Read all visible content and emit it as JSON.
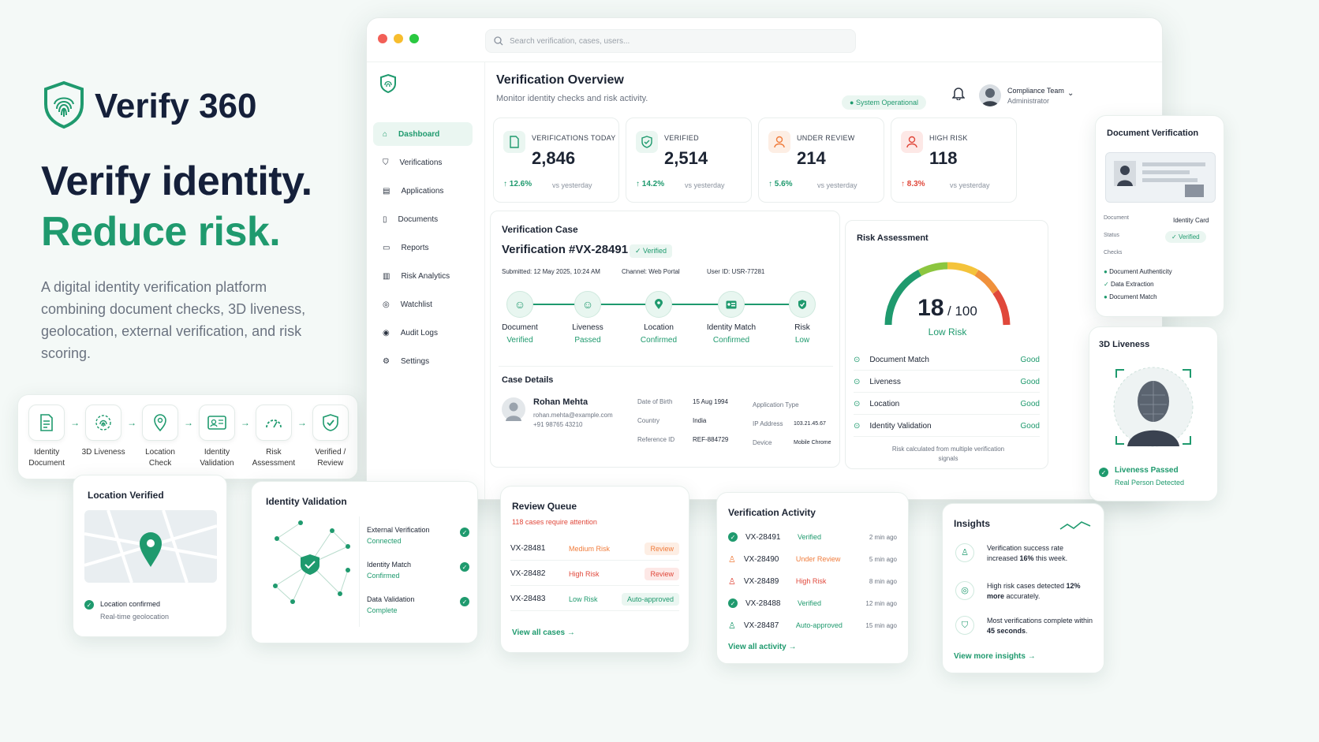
{
  "brand": {
    "name": "Verify 360"
  },
  "hero": {
    "line1": "Verify identity.",
    "line2": "Reduce risk."
  },
  "description": "A digital identity verification platform combining document checks, 3D liveness, geolocation, external verification, and risk scoring.",
  "flow": [
    {
      "label": "Identity Document",
      "icon": "document-icon"
    },
    {
      "label": "3D Liveness",
      "icon": "fingerprint-icon"
    },
    {
      "label": "Location Check",
      "icon": "location-pin-icon"
    },
    {
      "label": "Identity Validation",
      "icon": "id-card-icon"
    },
    {
      "label": "Risk Assessment",
      "icon": "gauge-icon"
    },
    {
      "label": "Verified / Review",
      "icon": "shield-check-icon"
    }
  ],
  "window": {
    "search_placeholder": "Search verification, cases, users...",
    "nav": [
      {
        "label": "Dashboard",
        "icon": "home-icon"
      },
      {
        "label": "Verifications",
        "icon": "shield-icon"
      },
      {
        "label": "Applications",
        "icon": "applications-icon"
      },
      {
        "label": "Documents",
        "icon": "document-icon"
      },
      {
        "label": "Reports",
        "icon": "reports-icon"
      },
      {
        "label": "Risk Analytics",
        "icon": "bar-chart-icon"
      },
      {
        "label": "Watchlist",
        "icon": "watchlist-icon"
      },
      {
        "label": "Audit Logs",
        "icon": "audit-icon"
      },
      {
        "label": "Settings",
        "icon": "gear-icon"
      }
    ],
    "title": "Verification Overview",
    "subtitle": "Monitor identity checks and risk activity.",
    "status": "System Operational",
    "user": {
      "team": "Compliance Team",
      "role": "Administrator"
    },
    "stats": [
      {
        "label": "VERIFICATIONS TODAY",
        "value": "2,846",
        "change": "12.6%",
        "vs": "vs yesterday",
        "color": "#1f9a6e"
      },
      {
        "label": "VERIFIED",
        "value": "2,514",
        "change": "14.2%",
        "vs": "vs yesterday",
        "color": "#1f9a6e"
      },
      {
        "label": "UNDER REVIEW",
        "value": "214",
        "change": "5.6%",
        "vs": "vs yesterday",
        "color": "#f07c3c"
      },
      {
        "label": "HIGH RISK",
        "value": "118",
        "change": "8.3%",
        "vs": "vs yesterday",
        "color": "#e0483b"
      }
    ],
    "case": {
      "header": "Verification Case",
      "id": "Verification #VX-28491",
      "badge": "Verified",
      "submitted": "Submitted: 12 May 2025, 10:24 AM",
      "channel": "Channel: Web Portal",
      "userid": "User ID: USR-77281",
      "steps": [
        {
          "label": "Document",
          "status": "Verified"
        },
        {
          "label": "Liveness",
          "status": "Passed"
        },
        {
          "label": "Location",
          "status": "Confirmed"
        },
        {
          "label": "Identity Match",
          "status": "Confirmed"
        },
        {
          "label": "Risk",
          "status": "Low"
        }
      ],
      "details_title": "Case Details",
      "person": {
        "name": "Rohan Mehta",
        "email": "rohan.mehta@example.com",
        "phone": "+91 98765 43210"
      },
      "fields": [
        {
          "k": "Date of Birth",
          "v": "15 Aug 1994"
        },
        {
          "k": "Country",
          "v": "India"
        },
        {
          "k": "Reference ID",
          "v": "REF-884729"
        }
      ],
      "fields2": [
        {
          "k": "Application Type",
          "v": ""
        },
        {
          "k": "IP Address",
          "v": "103.21.45.67"
        },
        {
          "k": "Device",
          "v": "Mobile Chrome"
        }
      ]
    },
    "risk": {
      "title": "Risk Assessment",
      "score": "18",
      "max": "/ 100",
      "level": "Low Risk",
      "rows": [
        {
          "label": "Document Match",
          "value": "Good"
        },
        {
          "label": "Liveness",
          "value": "Good"
        },
        {
          "label": "Location",
          "value": "Good"
        },
        {
          "label": "Identity Validation",
          "value": "Good"
        }
      ],
      "note": "Risk calculated from multiple verification signals"
    }
  },
  "doc_card": {
    "title": "Document Verification",
    "doc_k": "Document",
    "doc_v": "Identity Card",
    "status_k": "Status",
    "status_v": "Verified",
    "checks_k": "Checks",
    "checks": [
      "Document Authenticity",
      "Data Extraction",
      "Document Match"
    ]
  },
  "liveness_card": {
    "title": "3D Liveness",
    "passed": "Liveness Passed",
    "sub": "Real Person Detected"
  },
  "location_card": {
    "title": "Location Verified",
    "line1": "Location confirmed",
    "line2": "Real-time geolocation"
  },
  "idval_card": {
    "title": "Identity Validation",
    "items": [
      {
        "label": "External Verification",
        "status": "Connected"
      },
      {
        "label": "Identity Match",
        "status": "Confirmed"
      },
      {
        "label": "Data Validation",
        "status": "Complete"
      }
    ]
  },
  "review_card": {
    "title": "Review Queue",
    "sub": "118 cases require attention",
    "rows": [
      {
        "id": "VX-28481",
        "risk": "Medium Risk",
        "action": "Review",
        "color": "#f07c3c"
      },
      {
        "id": "VX-28482",
        "risk": "High Risk",
        "action": "Review",
        "color": "#e0483b"
      },
      {
        "id": "VX-28483",
        "risk": "Low Risk",
        "action": "Auto-approved",
        "color": "#1f9a6e"
      }
    ],
    "link": "View all cases"
  },
  "activity_card": {
    "title": "Verification Activity",
    "rows": [
      {
        "id": "VX-28491",
        "status": "Verified",
        "time": "2 min ago",
        "color": "#1f9a6e"
      },
      {
        "id": "VX-28490",
        "status": "Under Review",
        "time": "5 min ago",
        "color": "#f07c3c"
      },
      {
        "id": "VX-28489",
        "status": "High Risk",
        "time": "8 min ago",
        "color": "#e0483b"
      },
      {
        "id": "VX-28488",
        "status": "Verified",
        "time": "12 min ago",
        "color": "#1f9a6e"
      },
      {
        "id": "VX-28487",
        "status": "Auto-approved",
        "time": "15 min ago",
        "color": "#1f9a6e"
      }
    ],
    "link": "View all activity"
  },
  "insights_card": {
    "title": "Insights",
    "items": [
      {
        "pre": "Verification success rate increased ",
        "bold": "16%",
        "post": " this week."
      },
      {
        "pre": "High risk cases detected ",
        "bold": "12% more",
        "post": " accurately."
      },
      {
        "pre": "Most verifications complete within ",
        "bold": "45 seconds",
        "post": "."
      }
    ],
    "link": "View more insights"
  },
  "colors": {
    "accent": "#1f9a6e",
    "warning": "#f07c3c",
    "danger": "#e0483b"
  }
}
